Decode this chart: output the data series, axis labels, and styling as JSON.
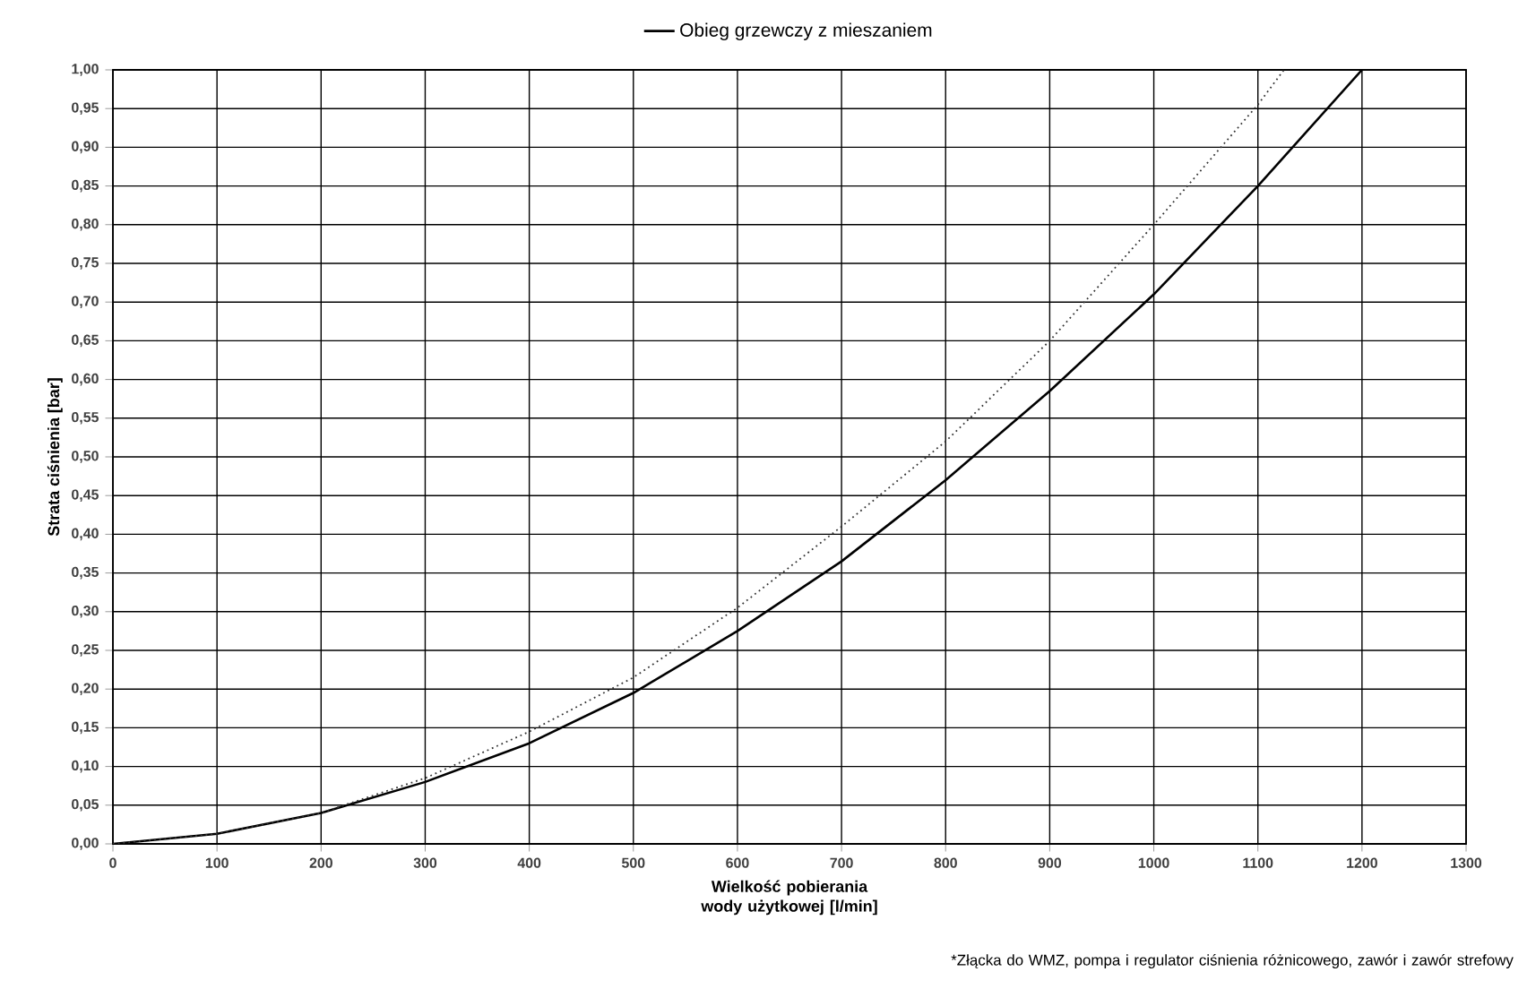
{
  "chart_data": {
    "type": "line",
    "xlabel": "Wielkość pobierania wody użytkowej [l/min]",
    "ylabel": "Strata ciśnienia [bar]",
    "annotations": [
      "*Złącka do WMZ, pompa i regulator ciśnienia różnicowego, zawór i zawór strefowy"
    ],
    "xlim": [
      0,
      1300
    ],
    "xticks": [
      0,
      100,
      200,
      300,
      400,
      500,
      600,
      700,
      800,
      900,
      1000,
      1100,
      1200,
      1300
    ],
    "ylim": [
      0,
      1
    ],
    "yticks": [
      {
        "value": 0,
        "label": "0,00"
      },
      {
        "value": 0.05,
        "label": "0,05"
      },
      {
        "value": 0.1,
        "label": "0,10"
      },
      {
        "value": 0.15,
        "label": "0,15"
      },
      {
        "value": 0.2,
        "label": "0,20"
      },
      {
        "value": 0.25,
        "label": "0,25"
      },
      {
        "value": 0.3,
        "label": "0,30"
      },
      {
        "value": 0.35,
        "label": "0,35"
      },
      {
        "value": 0.4,
        "label": "0,40"
      },
      {
        "value": 0.45,
        "label": "0,45"
      },
      {
        "value": 0.5,
        "label": "0,50"
      },
      {
        "value": 0.55,
        "label": "0,55"
      },
      {
        "value": 0.6,
        "label": "0,60"
      },
      {
        "value": 0.65,
        "label": "0,65"
      },
      {
        "value": 0.7,
        "label": "0,70"
      },
      {
        "value": 0.75,
        "label": "0,75"
      },
      {
        "value": 0.8,
        "label": "0,80"
      },
      {
        "value": 0.85,
        "label": "0,85"
      },
      {
        "value": 0.9,
        "label": "0,90"
      },
      {
        "value": 0.95,
        "label": "0,95"
      },
      {
        "value": 1,
        "label": "1,00"
      }
    ],
    "grid": true,
    "legend": "top",
    "series": [
      {
        "name": "Obieg grzewczy z mieszaniem",
        "color": "#000000",
        "line_style": "solid",
        "x": [
          0,
          100,
          200,
          300,
          400,
          500,
          600,
          700,
          800,
          900,
          1000,
          1100,
          1200
        ],
        "values": [
          0,
          0.013,
          0.04,
          0.08,
          0.13,
          0.195,
          0.275,
          0.365,
          0.47,
          0.585,
          0.71,
          0.85,
          1.0
        ]
      },
      {
        "color": "#333333",
        "line_style": "dotted",
        "x": [
          0,
          100,
          200,
          300,
          400,
          500,
          600,
          700,
          800,
          900,
          1000,
          1100,
          1125
        ],
        "values": [
          0,
          0.013,
          0.04,
          0.085,
          0.145,
          0.215,
          0.305,
          0.41,
          0.52,
          0.65,
          0.8,
          0.955,
          1.0
        ]
      }
    ]
  }
}
